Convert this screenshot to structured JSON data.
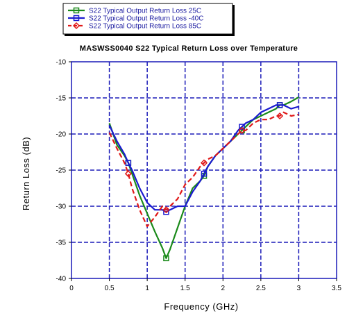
{
  "chart_data": {
    "type": "line",
    "title": "MASWSS0040 S22 Typical Return Loss over Temperature",
    "xlabel": "Frequency (GHz)",
    "ylabel": "Return Loss (dB)",
    "xlim": [
      0,
      3.5
    ],
    "ylim": [
      -40,
      -10
    ],
    "xticks": [
      0,
      0.5,
      1,
      1.5,
      2,
      2.5,
      3,
      3.5
    ],
    "yticks": [
      -10,
      -15,
      -20,
      -25,
      -30,
      -35,
      -40
    ],
    "xtick_labels": [
      "0",
      "0.5",
      "1",
      "1.5",
      "2",
      "2.5",
      "3",
      "3.5"
    ],
    "ytick_labels": [
      "-10",
      "-15",
      "-20",
      "-25",
      "-30",
      "-35",
      "-40"
    ],
    "grid": true,
    "grid_style": "dashed",
    "legend_position": "top-left, above plot",
    "series": [
      {
        "name": "S22 Typical Output Return Loss 25C",
        "color": "#1a8a1a",
        "style": "solid",
        "marker": "square",
        "x": [
          0.5,
          0.6,
          0.7,
          0.75,
          0.8,
          0.9,
          1.0,
          1.1,
          1.2,
          1.25,
          1.3,
          1.4,
          1.5,
          1.6,
          1.7,
          1.75,
          1.8,
          1.9,
          2.0,
          2.1,
          2.2,
          2.25,
          2.3,
          2.4,
          2.5,
          2.6,
          2.7,
          2.75,
          2.8,
          2.9,
          3.0
        ],
        "y": [
          -18.5,
          -21.5,
          -23.0,
          -24.0,
          -25.5,
          -28.5,
          -31.0,
          -33.5,
          -35.8,
          -37.2,
          -36.0,
          -33.0,
          -30.0,
          -27.5,
          -26.5,
          -25.8,
          -24.5,
          -23.0,
          -22.0,
          -21.0,
          -20.0,
          -19.5,
          -19.0,
          -18.0,
          -17.5,
          -17.0,
          -16.5,
          -16.0,
          -16.0,
          -15.5,
          -14.9
        ]
      },
      {
        "name": "S22 Typical Output Return Loss  -40C",
        "color": "#1a1ad0",
        "style": "solid",
        "marker": "square",
        "x": [
          0.5,
          0.6,
          0.7,
          0.75,
          0.8,
          0.9,
          1.0,
          1.1,
          1.2,
          1.25,
          1.3,
          1.4,
          1.5,
          1.6,
          1.7,
          1.75,
          1.8,
          1.9,
          2.0,
          2.1,
          2.2,
          2.25,
          2.3,
          2.4,
          2.5,
          2.6,
          2.7,
          2.75,
          2.8,
          2.9,
          3.0
        ],
        "y": [
          -18.8,
          -21.0,
          -22.8,
          -24.0,
          -25.0,
          -27.5,
          -29.5,
          -30.5,
          -30.5,
          -30.8,
          -30.5,
          -30.0,
          -30.0,
          -28.0,
          -26.5,
          -25.5,
          -24.5,
          -23.0,
          -22.0,
          -21.0,
          -19.5,
          -19.0,
          -18.5,
          -18.0,
          -17.0,
          -16.5,
          -16.0,
          -16.0,
          -16.0,
          -16.5,
          -16.2
        ]
      },
      {
        "name": "S22 Typical Output Return Loss 85C",
        "color": "#e01818",
        "style": "dashed",
        "marker": "diamond",
        "x": [
          0.5,
          0.6,
          0.7,
          0.75,
          0.8,
          0.9,
          1.0,
          1.1,
          1.2,
          1.25,
          1.3,
          1.4,
          1.5,
          1.6,
          1.7,
          1.75,
          1.8,
          1.9,
          2.0,
          2.1,
          2.2,
          2.25,
          2.3,
          2.4,
          2.5,
          2.6,
          2.7,
          2.75,
          2.8,
          2.9,
          3.0
        ],
        "y": [
          -19.8,
          -22.0,
          -24.0,
          -25.5,
          -27.5,
          -30.5,
          -32.8,
          -31.5,
          -30.0,
          -30.5,
          -30.0,
          -29.0,
          -27.0,
          -26.0,
          -24.5,
          -24.0,
          -23.5,
          -23.0,
          -22.0,
          -21.0,
          -20.0,
          -19.5,
          -19.5,
          -18.5,
          -18.0,
          -18.0,
          -17.5,
          -17.5,
          -17.0,
          -17.5,
          -17.3
        ]
      }
    ]
  }
}
